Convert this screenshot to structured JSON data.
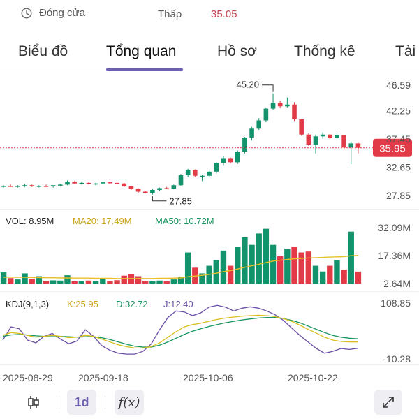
{
  "header": {
    "status": "Đóng cửa",
    "low_label": "Thấp",
    "low_value": "35.05"
  },
  "tabs": [
    {
      "label": "Biểu đồ",
      "active": false
    },
    {
      "label": "Tổng quan",
      "active": true
    },
    {
      "label": "Hồ sơ",
      "active": false
    },
    {
      "label": "Thống kê",
      "active": false
    },
    {
      "label": "Tài",
      "active": false
    }
  ],
  "colors": {
    "up": "#13936b",
    "down": "#e23b48",
    "ma20": "#e6c02a",
    "ma50": "#17945f",
    "kdj_k": "#d9bf1e",
    "kdj_d": "#17945f",
    "kdj_j": "#6a4fa6",
    "accent": "#6b5fb0",
    "price_tag": "#e23b48"
  },
  "chart_data": {
    "type": "candlestick",
    "dates_shown": [
      "2025-08-29",
      "2025-09-18",
      "2025-10-06",
      "2025-10-22"
    ],
    "price_axis": [
      "46.59",
      "42.25",
      "37.45",
      "32.65",
      "27.85"
    ],
    "price_range": [
      27.85,
      46.59
    ],
    "current_price": "35.95",
    "high_annotation": "45.20",
    "low_annotation": "27.85",
    "candles": [
      [
        29.4,
        29.6,
        29.2,
        29.5
      ],
      [
        29.5,
        29.7,
        29.3,
        29.4
      ],
      [
        29.4,
        29.6,
        29.2,
        29.5
      ],
      [
        29.5,
        29.8,
        29.3,
        29.6
      ],
      [
        29.6,
        29.7,
        29.3,
        29.4
      ],
      [
        29.4,
        29.6,
        29.2,
        29.5
      ],
      [
        29.5,
        29.7,
        29.3,
        29.4
      ],
      [
        29.4,
        29.6,
        29.2,
        29.6
      ],
      [
        29.6,
        29.8,
        29.4,
        29.7
      ],
      [
        29.7,
        30.4,
        29.6,
        30.2
      ],
      [
        30.2,
        30.3,
        29.8,
        29.9
      ],
      [
        29.9,
        30.1,
        29.7,
        30.0
      ],
      [
        30.0,
        30.1,
        29.7,
        29.8
      ],
      [
        29.8,
        30.0,
        29.6,
        29.9
      ],
      [
        29.9,
        30.2,
        29.8,
        30.1
      ],
      [
        30.1,
        30.2,
        29.9,
        30.0
      ],
      [
        30.0,
        30.1,
        29.8,
        29.9
      ],
      [
        29.9,
        30.0,
        29.3,
        29.4
      ],
      [
        29.4,
        29.5,
        28.8,
        29.0
      ],
      [
        29.0,
        29.1,
        28.3,
        28.5
      ],
      [
        28.5,
        28.6,
        28.2,
        28.3
      ],
      [
        28.3,
        29.0,
        28.0,
        28.8
      ],
      [
        28.8,
        29.2,
        28.6,
        29.1
      ],
      [
        29.1,
        29.3,
        28.9,
        29.0
      ],
      [
        29.0,
        29.7,
        28.9,
        29.6
      ],
      [
        29.6,
        31.5,
        29.5,
        31.3
      ],
      [
        31.3,
        32.4,
        31.0,
        32.2
      ],
      [
        32.2,
        32.3,
        31.0,
        31.2
      ],
      [
        31.2,
        31.4,
        30.3,
        31.2
      ],
      [
        31.2,
        32.1,
        30.9,
        31.9
      ],
      [
        31.9,
        33.5,
        31.6,
        33.4
      ],
      [
        33.4,
        34.5,
        33.0,
        34.2
      ],
      [
        34.2,
        34.3,
        33.3,
        33.5
      ],
      [
        33.5,
        35.5,
        33.2,
        35.3
      ],
      [
        35.3,
        37.8,
        35.0,
        37.7
      ],
      [
        37.7,
        39.5,
        37.2,
        39.2
      ],
      [
        39.2,
        41.0,
        39.0,
        40.6
      ],
      [
        40.6,
        42.8,
        40.3,
        42.6
      ],
      [
        42.6,
        45.2,
        42.4,
        43.6
      ],
      [
        43.6,
        44.0,
        42.7,
        43.0
      ],
      [
        43.0,
        44.5,
        42.8,
        43.3
      ],
      [
        43.3,
        43.7,
        40.5,
        40.8
      ],
      [
        40.8,
        40.9,
        38.0,
        38.2
      ],
      [
        38.2,
        38.4,
        36.3,
        36.5
      ],
      [
        36.5,
        38.2,
        35.0,
        37.9
      ],
      [
        37.9,
        38.6,
        37.5,
        38.2
      ],
      [
        38.2,
        38.3,
        37.4,
        37.6
      ],
      [
        37.6,
        38.4,
        37.3,
        38.1
      ],
      [
        38.1,
        38.2,
        35.6,
        36.0
      ],
      [
        36.0,
        37.0,
        33.2,
        36.7
      ],
      [
        36.7,
        36.8,
        35.0,
        35.95
      ]
    ],
    "volume": {
      "label": "VOL: 8.95M",
      "ma20_label": "MA20: 17.49M",
      "ma50_label": "MA50: 10.72M",
      "axis": [
        "32.09M",
        "17.36M",
        "2.64M"
      ],
      "range": [
        2.64,
        32.09
      ],
      "values": [
        8.5,
        5.5,
        4.8,
        8.0,
        5.0,
        6.5,
        4.0,
        4.3,
        4.2,
        7.0,
        3.8,
        4.0,
        4.2,
        4.1,
        5.3,
        4.1,
        4.4,
        6.8,
        7.8,
        6.5,
        4.0,
        3.9,
        4.2,
        3.9,
        4.8,
        6.0,
        19.0,
        11.0,
        8.0,
        12.0,
        15.0,
        20.0,
        12.0,
        22.0,
        27.0,
        23.0,
        29.0,
        31.5,
        23.0,
        17.0,
        21.0,
        22.0,
        19.0,
        19.5,
        12.0,
        9.0,
        12.0,
        15.0,
        10.0,
        30.0,
        8.95
      ],
      "ma20": [
        6.0,
        6.0,
        5.9,
        5.9,
        5.8,
        5.8,
        5.7,
        5.7,
        5.6,
        5.6,
        5.5,
        5.5,
        5.5,
        5.4,
        5.4,
        5.4,
        5.3,
        5.3,
        5.3,
        5.3,
        5.3,
        5.3,
        5.4,
        5.4,
        5.5,
        5.6,
        6.2,
        6.6,
        7.0,
        7.5,
        8.1,
        8.9,
        9.5,
        10.3,
        11.2,
        12.0,
        12.8,
        13.7,
        14.5,
        14.9,
        15.3,
        15.7,
        15.9,
        16.1,
        16.3,
        16.4,
        16.6,
        16.7,
        16.8,
        17.3,
        17.49
      ]
    },
    "kdj": {
      "label": "KDJ(9,1,3)",
      "k_label": "K:25.95",
      "d_label": "D:32.72",
      "j_label": "J:12.40",
      "axis": [
        "108.85",
        "-10.28"
      ],
      "range": [
        -10.28,
        108.85
      ],
      "k": [
        40,
        46,
        44,
        40,
        36,
        38,
        40,
        38,
        35,
        36,
        40,
        38,
        32,
        26,
        20,
        16,
        13,
        13,
        16,
        24,
        36,
        48,
        58,
        63,
        66,
        70,
        74,
        77,
        79,
        81,
        82,
        83,
        82,
        80,
        76,
        70,
        62,
        53,
        45,
        36,
        30,
        27,
        26,
        25.95
      ],
      "d": [
        38,
        41,
        42,
        41,
        39,
        38,
        39,
        38,
        37,
        36,
        37,
        37,
        35,
        31,
        26,
        21,
        17,
        15,
        15,
        19,
        26,
        34,
        42,
        49,
        54,
        59,
        63,
        67,
        70,
        73,
        75,
        77,
        78,
        78,
        76,
        72,
        67,
        60,
        53,
        46,
        40,
        36,
        34,
        32.72
      ],
      "j": [
        30,
        58,
        54,
        30,
        24,
        38,
        44,
        32,
        22,
        28,
        52,
        38,
        18,
        8,
        2,
        0,
        0,
        6,
        22,
        52,
        78,
        92,
        90,
        82,
        88,
        100,
        104,
        100,
        92,
        98,
        101,
        98,
        92,
        84,
        72,
        56,
        40,
        26,
        12,
        2,
        6,
        12,
        10,
        12.4
      ]
    }
  },
  "toolbar": {
    "chart_type_icon": "candlestick-icon",
    "timeframe": "1d",
    "indicator_label": "f(x)",
    "fullscreen_icon": "expand-icon"
  }
}
